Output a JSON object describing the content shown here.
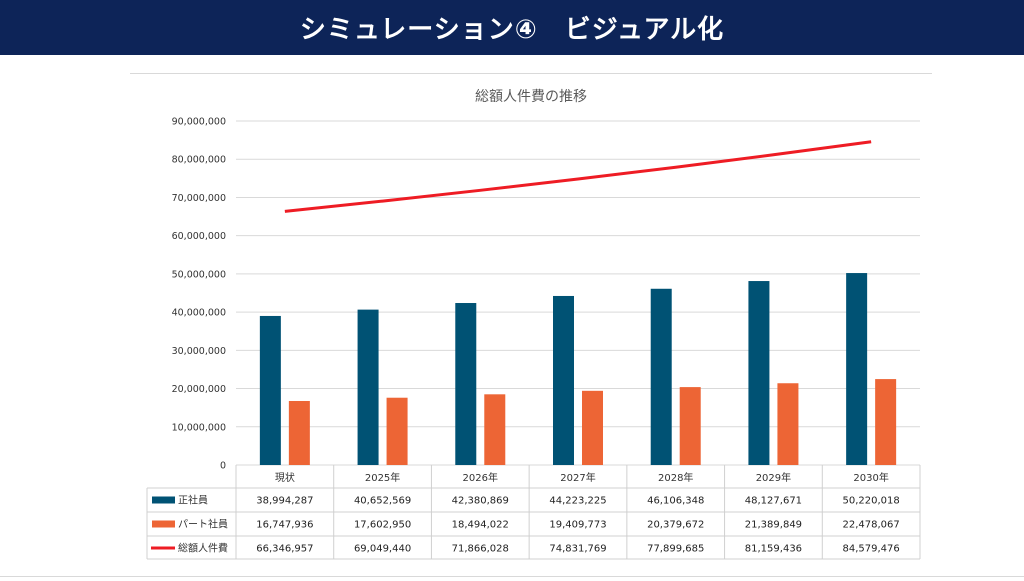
{
  "page": {
    "banner_title": "シミュレーション④　ビジュアル化"
  },
  "colors": {
    "banner_bg": "#0d2458",
    "regular": "#005274",
    "part": "#ed6535",
    "total": "#ee1c24"
  },
  "chart_data": {
    "type": "bar",
    "title": "総額人件費の推移",
    "categories": [
      "現状",
      "2025年",
      "2026年",
      "2027年",
      "2028年",
      "2029年",
      "2030年"
    ],
    "ylim": [
      0,
      90000000
    ],
    "ytick_step": 10000000,
    "ytick_labels": [
      "0",
      "10,000,000",
      "20,000,000",
      "30,000,000",
      "40,000,000",
      "50,000,000",
      "60,000,000",
      "70,000,000",
      "80,000,000",
      "90,000,000"
    ],
    "grid": true,
    "legend": "data-table",
    "series": [
      {
        "name": "正社員",
        "type": "bar",
        "color_key": "regular",
        "values": [
          38994287,
          40652569,
          42380869,
          44223225,
          46106348,
          48127671,
          50220018
        ],
        "labels": [
          "38,994,287",
          "40,652,569",
          "42,380,869",
          "44,223,225",
          "46,106,348",
          "48,127,671",
          "50,220,018"
        ]
      },
      {
        "name": "パート社員",
        "type": "bar",
        "color_key": "part",
        "values": [
          16747936,
          17602950,
          18494022,
          19409773,
          20379672,
          21389849,
          22478067
        ],
        "labels": [
          "16,747,936",
          "17,602,950",
          "18,494,022",
          "19,409,773",
          "20,379,672",
          "21,389,849",
          "22,478,067"
        ]
      },
      {
        "name": "総額人件費",
        "type": "line",
        "color_key": "total",
        "values": [
          66346957,
          69049440,
          71866028,
          74831769,
          77899685,
          81159436,
          84579476
        ],
        "labels": [
          "66,346,957",
          "69,049,440",
          "71,866,028",
          "74,831,769",
          "77,899,685",
          "81,159,436",
          "84,579,476"
        ]
      }
    ]
  }
}
